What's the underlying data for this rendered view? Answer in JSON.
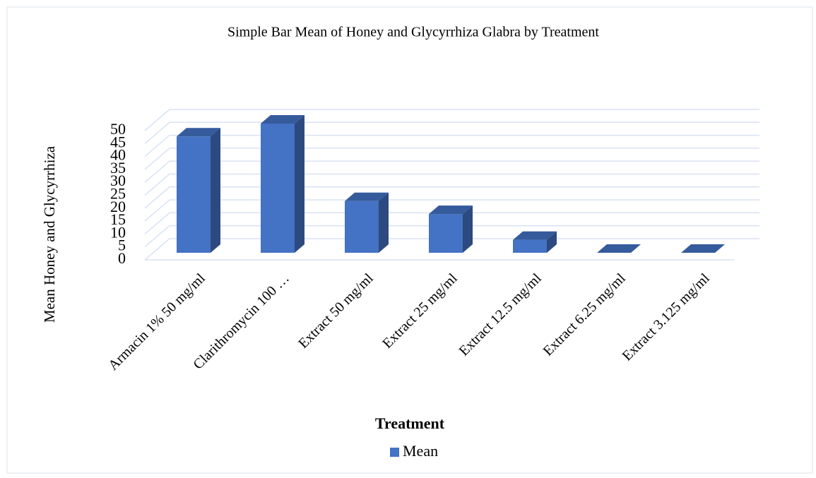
{
  "chart_data": {
    "type": "bar3d",
    "title": "Simple Bar Mean of Honey and Glycyrrhiza Glabra by Treatment",
    "x_label": "Treatment",
    "y_label": "Mean Honey and Glycyrrhiza",
    "categories": [
      "Armacin 1% 50 mg/ml",
      "Clarithromycin 100 …",
      "Extract 50 mg/ml",
      "Extract 25 mg/ml",
      "Extract 12.5 mg/ml",
      "Extract 6.25 mg/ml",
      "Extract 3.125 mg/ml"
    ],
    "series": [
      {
        "name": "Mean",
        "color": "#4472c4",
        "values": [
          45,
          50,
          20,
          15,
          5,
          0,
          0
        ]
      }
    ],
    "ylim": [
      0,
      50
    ],
    "yticks": [
      0,
      5,
      10,
      15,
      20,
      25,
      30,
      35,
      40,
      45,
      50
    ],
    "grid": true,
    "legend": "bottom"
  }
}
